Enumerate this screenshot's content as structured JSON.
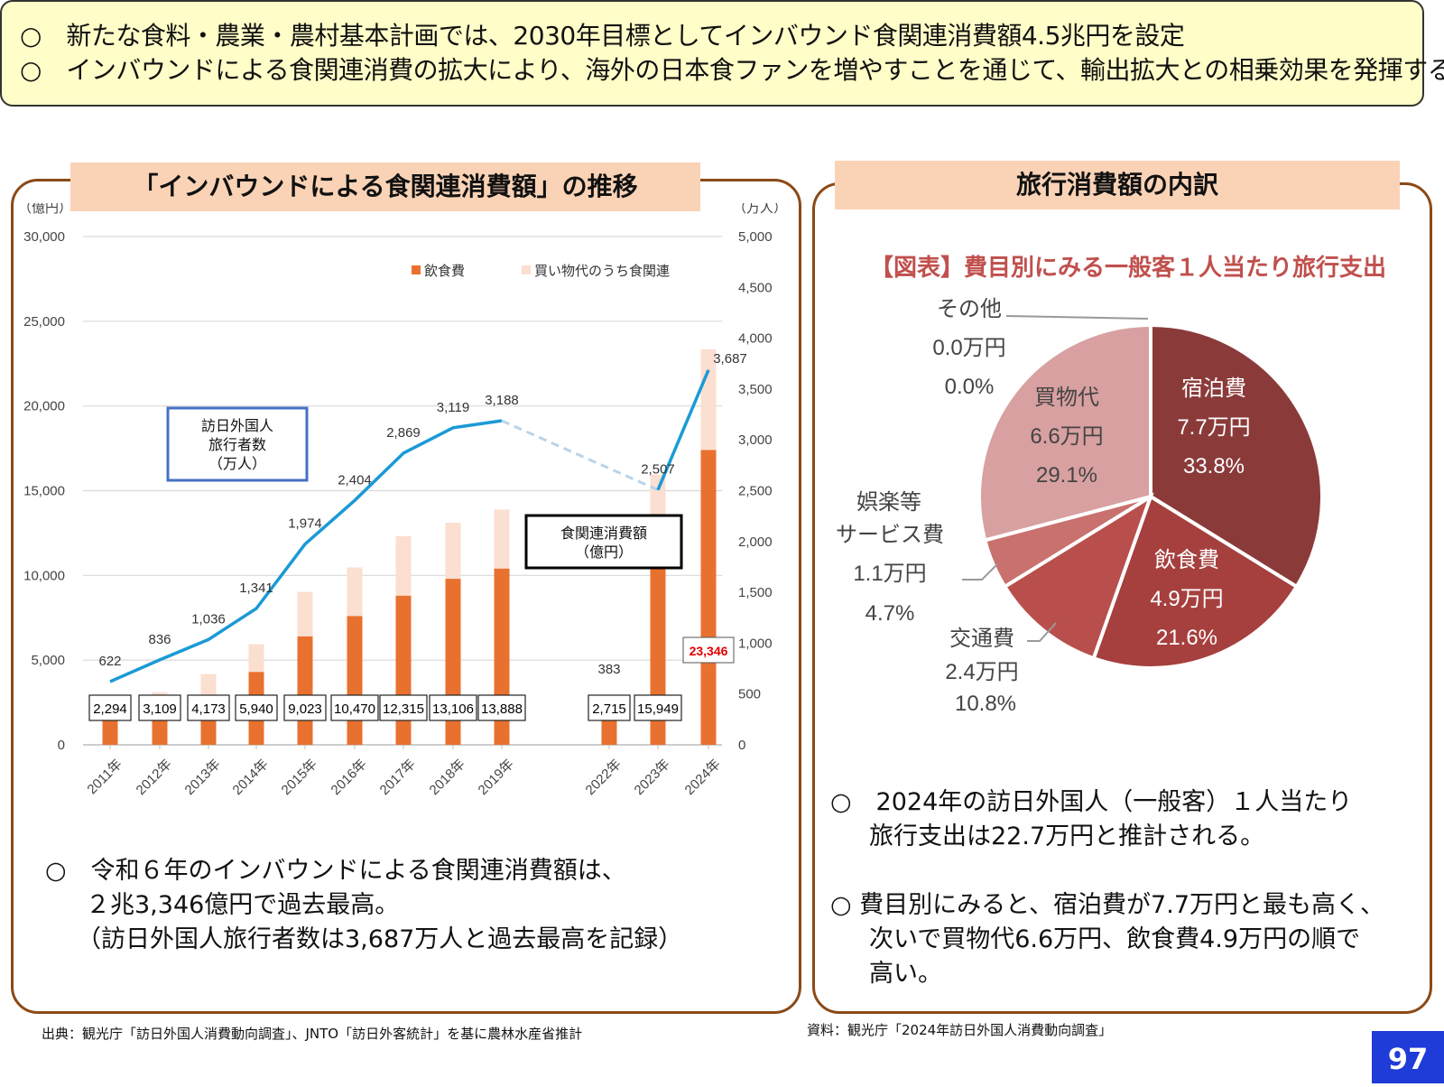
{
  "summary": {
    "line1": "○　新たな食料・農業・農村基本計画では、2030年目標としてインバウンド食関連消費額4.5兆円を設定",
    "line2": "○　インバウンドによる食関連消費の拡大により、海外の日本食ファンを増やすことを通じて、輸出拡大との相乗効果を発揮する。"
  },
  "left_panel": {
    "title": "「インバウンドによる食関連消費額」の推移",
    "note_line1": "○　令和６年のインバウンドによる食関連消費額は、",
    "note_line2": "２兆3,346億円で過去最高。",
    "note_line3": "（訪日外国人旅行者数は3,687万人と過去最高を記録）",
    "visitor_box": [
      "訪日外国人",
      "旅行者数",
      "（万人）"
    ],
    "food_box": [
      "食関連消費額",
      "（億円）"
    ],
    "source": "出典：観光庁「訪日外国人消費動向調査」、JNTO「訪日外客統計」を基に農林水産省推計"
  },
  "right_panel": {
    "title": "旅行消費額の内訳",
    "chart_title": "【図表】費目別にみる一般客１人当たり旅行支出",
    "note1_line1": "○　2024年の訪日外国人（一般客）１人当たり",
    "note1_line2": "旅行支出は22.7万円と推計される。",
    "note2_line1": "○ 費目別にみると、宿泊費が7.7万円と最も高く、",
    "note2_line2": "次いで買物代6.6万円、飲食費4.9万円の順で",
    "note2_line3": "高い。",
    "source": "資料：観光庁「2024年訪日外国人消費動向調査」"
  },
  "page_number": "97",
  "chart_data": [
    {
      "type": "bar",
      "categories": [
        "2011年",
        "2012年",
        "2013年",
        "2014年",
        "2015年",
        "2016年",
        "2017年",
        "2018年",
        "2019年",
        "2022年",
        "2023年",
        "2024年"
      ],
      "series": [
        {
          "name": "飲食費",
          "values": [
            1600,
            2200,
            2900,
            4300,
            6400,
            7600,
            8800,
            9800,
            10400,
            2000,
            10700,
            17400
          ],
          "color": "#e8712f"
        },
        {
          "name": "買い物代のうち食関連",
          "values": [
            694,
            909,
            1273,
            1640,
            2623,
            2870,
            3515,
            3306,
            3488,
            715,
            5249,
            5946
          ],
          "color": "#fbdfd0"
        }
      ],
      "totals": [
        "2,294",
        "3,109",
        "4,173",
        "5,940",
        "9,023",
        "10,470",
        "12,315",
        "13,106",
        "13,888",
        "2,715",
        "15,949",
        "23,346"
      ],
      "line_series": {
        "name": "訪日外国人旅行者数（万人）",
        "values": [
          622,
          836,
          1036,
          1341,
          1974,
          2404,
          2869,
          3119,
          3188,
          383,
          2507,
          3687
        ],
        "labels": [
          "622",
          "836",
          "1,036",
          "1,341",
          "1,974",
          "2,404",
          "2,869",
          "3,119",
          "3,188",
          "383",
          "2,507",
          "3,687"
        ],
        "color": "#1a9ad6"
      },
      "y_left": {
        "unit": "（億円）",
        "ticks": [
          "0",
          "5,000",
          "10,000",
          "15,000",
          "20,000",
          "25,000",
          "30,000"
        ],
        "max": 30000
      },
      "y_right": {
        "unit": "（万人）",
        "ticks": [
          "0",
          "500",
          "1,000",
          "1,500",
          "2,000",
          "2,500",
          "3,000",
          "3,500",
          "4,000",
          "4,500",
          "5,000"
        ],
        "max": 5000
      },
      "grid": true,
      "legend": "top-right"
    },
    {
      "type": "pie",
      "title": "【図表】費目別にみる一般客１人当たり旅行支出",
      "slices": [
        {
          "name": "宿泊費",
          "value_label": "7.7万円",
          "percent_label": "33.8%",
          "percent": 33.8,
          "color": "#8b3a3a"
        },
        {
          "name": "飲食費",
          "value_label": "4.9万円",
          "percent_label": "21.6%",
          "percent": 21.6,
          "color": "#a5403e"
        },
        {
          "name": "交通費",
          "value_label": "2.4万円",
          "percent_label": "10.8%",
          "percent": 10.8,
          "color": "#b94f4c"
        },
        {
          "name": "娯楽等サービス費",
          "name_lines": [
            "娯楽等",
            "サービス費"
          ],
          "value_label": "1.1万円",
          "percent_label": "4.7%",
          "percent": 4.7,
          "color": "#c8716e"
        },
        {
          "name": "買物代",
          "value_label": "6.6万円",
          "percent_label": "29.1%",
          "percent": 29.1,
          "color": "#d8a0a0"
        },
        {
          "name": "その他",
          "value_label": "0.0万円",
          "percent_label": "0.0%",
          "percent": 0.0,
          "color": "#cccccc"
        }
      ]
    }
  ]
}
